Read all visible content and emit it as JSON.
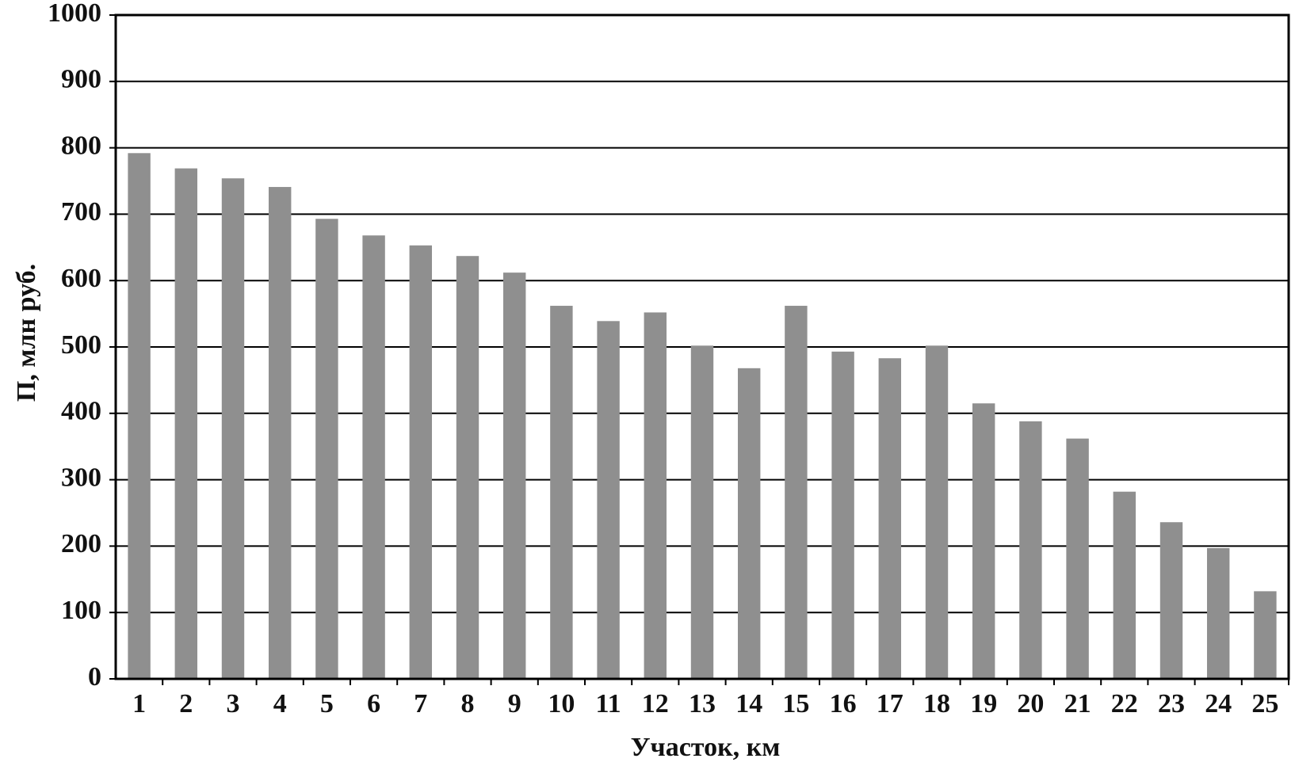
{
  "chart_data": {
    "type": "bar",
    "xlabel": "Участок, км",
    "ylabel": "П, млн руб.",
    "categories": [
      "1",
      "2",
      "3",
      "4",
      "5",
      "6",
      "7",
      "8",
      "9",
      "10",
      "11",
      "12",
      "13",
      "14",
      "15",
      "16",
      "17",
      "18",
      "19",
      "20",
      "21",
      "22",
      "23",
      "24",
      "25"
    ],
    "values": [
      792,
      769,
      754,
      741,
      693,
      668,
      653,
      637,
      612,
      562,
      539,
      552,
      502,
      468,
      562,
      493,
      483,
      502,
      415,
      388,
      362,
      282,
      236,
      197,
      132
    ],
    "color": "#8f8f8f",
    "ylim": [
      0,
      1000
    ],
    "yticks": [
      0,
      100,
      200,
      300,
      400,
      500,
      600,
      700,
      800,
      900,
      1000
    ],
    "grid": true
  }
}
